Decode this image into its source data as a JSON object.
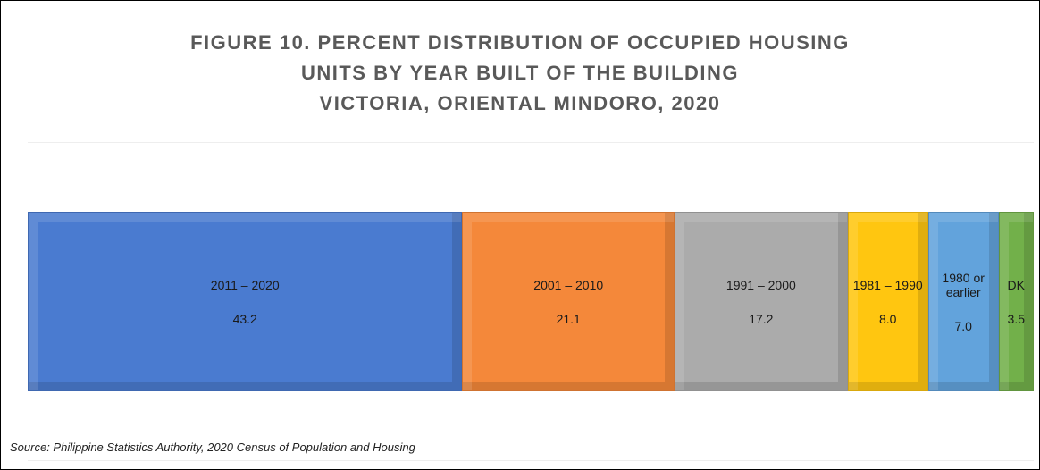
{
  "chart_data": {
    "type": "stacked-bar",
    "title": [
      "FIGURE 10. PERCENT DISTRIBUTION OF OCCUPIED HOUSING",
      "UNITS BY YEAR BUILT OF THE BUILDING",
      "VICTORIA, ORIENTAL MINDORO, 2020"
    ],
    "xlim": [
      0,
      100
    ],
    "series": [
      {
        "name": "2011 – 2020",
        "color": "#4a7bd0",
        "values": [
          43.2
        ],
        "value_labels": [
          "43.2"
        ]
      },
      {
        "name": "2001 – 2010",
        "color": "#f4883a",
        "values": [
          21.1
        ],
        "value_labels": [
          "21.1"
        ]
      },
      {
        "name": "1991 – 2000",
        "color": "#ababab",
        "values": [
          17.2
        ],
        "value_labels": [
          "17.2"
        ]
      },
      {
        "name": "1981 – 1990",
        "color": "#ffc610",
        "values": [
          8
        ],
        "value_labels": [
          "8.0"
        ]
      },
      {
        "name": "1980 or earlier",
        "color": "#62a3dc",
        "values": [
          7
        ],
        "value_labels": [
          "7.0"
        ]
      },
      {
        "name": "DK",
        "color": "#72b04a",
        "values": [
          3.5
        ],
        "value_labels": [
          "3.5"
        ]
      }
    ],
    "source": "Source: Philippine Statistics Authority, 2020 Census of Population and Housing"
  }
}
